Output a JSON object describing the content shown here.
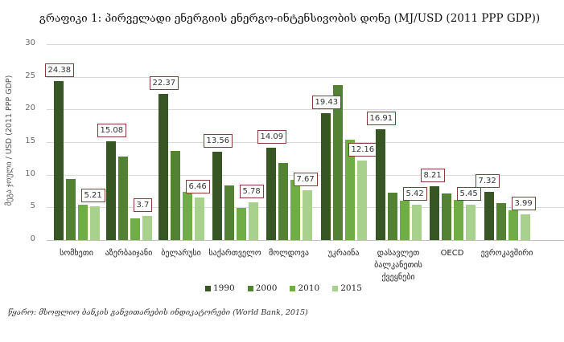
{
  "title": "გრაფიკი 1: პირველადი ენერგიის ენერგო-ინტენსივობის დონე (MJ/USD (2011 PPP GDP))",
  "source": "წყარო: მსოფლიო ბანკის განვითარების ინდიკატორები (World Bank, 2015)",
  "legend": [
    {
      "label": "1990",
      "color": "#375623"
    },
    {
      "label": "2000",
      "color": "#548235"
    },
    {
      "label": "2010",
      "color": "#70AD47"
    },
    {
      "label": "2015",
      "color": "#A9D18E"
    }
  ],
  "chart_data": {
    "type": "bar",
    "title": "გრაფიკი 1: პირველადი ენერგიის ენერგო-ინტენსივობის დონე (MJ/USD (2011 PPP GDP))",
    "xlabel": "",
    "ylabel": "მეგა ჯოული / USD (2011 PPP GDP)",
    "ylim": [
      0,
      30
    ],
    "yticks": [
      0,
      5,
      10,
      15,
      20,
      25,
      30
    ],
    "grid": true,
    "legend_position": "bottom",
    "categories": [
      "სომხეთი",
      "აზერბაიჯანი",
      "ბელარუსი",
      "საქართველო",
      "მოლდოვა",
      "უკრაინა",
      "დასავლეთ ბალკანეთის ქვეყნები",
      "OECD",
      "ევროკავშირი"
    ],
    "series": [
      {
        "name": "1990",
        "color": "#375623",
        "values": [
          24.38,
          15.08,
          22.37,
          13.56,
          14.09,
          19.43,
          16.91,
          8.21,
          7.32
        ]
      },
      {
        "name": "2000",
        "color": "#548235",
        "values": [
          9.35,
          12.75,
          13.65,
          8.3,
          11.75,
          23.7,
          7.3,
          7.1,
          5.6
        ]
      },
      {
        "name": "2010",
        "color": "#70AD47",
        "values": [
          5.35,
          3.27,
          7.38,
          4.92,
          9.22,
          15.37,
          6.03,
          6.1,
          4.57
        ]
      },
      {
        "name": "2015",
        "color": "#A9D18E",
        "values": [
          5.21,
          3.7,
          6.46,
          5.78,
          7.67,
          12.16,
          5.42,
          5.45,
          3.99
        ]
      }
    ],
    "data_labels": [
      {
        "category": "სომხეთი",
        "labels": [
          "24.38",
          "5.21"
        ]
      },
      {
        "category": "აზერბაიჯანი",
        "labels": [
          "15.08",
          "3.7"
        ]
      },
      {
        "category": "ბელარუსი",
        "labels": [
          "22.37",
          "6.46"
        ]
      },
      {
        "category": "საქართველო",
        "labels": [
          "13.56",
          "5.78"
        ]
      },
      {
        "category": "მოლდოვა",
        "labels": [
          "14.09",
          "7.67"
        ]
      },
      {
        "category": "უკრაინა",
        "labels": [
          "19.43",
          "12.16"
        ]
      },
      {
        "category": "დასავლეთ ბალკანეთის ქვეყნები",
        "labels": [
          "16.91",
          "5.42"
        ]
      },
      {
        "category": "OECD",
        "labels": [
          "8.21",
          "5.45"
        ]
      },
      {
        "category": "ევროკავშირი",
        "labels": [
          "7.32",
          "3.99"
        ]
      }
    ]
  }
}
